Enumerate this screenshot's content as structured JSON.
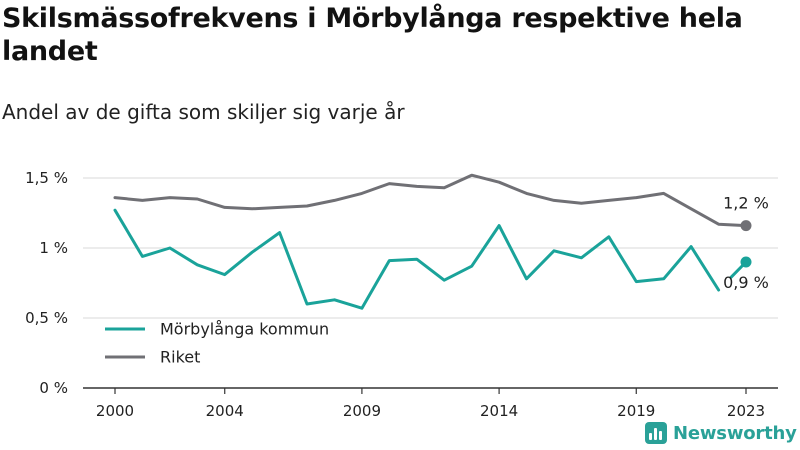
{
  "title": "Skilsmässofrekvens i Mörbylånga respektive hela landet",
  "subtitle": "Andel av de gifta som skiljer sig varje år",
  "brand": {
    "name": "Newsworthy",
    "icon": "newsworthy-logo-icon"
  },
  "colors": {
    "morbylanga": "#1aa39a",
    "riket": "#707075",
    "grid": "#d9d9d9",
    "axis": "#333333"
  },
  "chart_data": {
    "type": "line",
    "title": "Skilsmässofrekvens i Mörbylånga respektive hela landet",
    "subtitle": "Andel av de gifta som skiljer sig varje år",
    "xlabel": "",
    "ylabel": "",
    "x": [
      2000,
      2001,
      2002,
      2003,
      2004,
      2005,
      2006,
      2007,
      2008,
      2009,
      2010,
      2011,
      2012,
      2013,
      2014,
      2015,
      2016,
      2017,
      2018,
      2019,
      2020,
      2021,
      2022,
      2023
    ],
    "xticks": [
      2000,
      2004,
      2009,
      2014,
      2019,
      2023
    ],
    "xtick_labels": [
      "2000",
      "2004",
      "2009",
      "2014",
      "2019",
      "2023"
    ],
    "ylim": [
      0,
      1.5
    ],
    "yticks": [
      0,
      0.5,
      1,
      1.5
    ],
    "ytick_labels": [
      "0 %",
      "0,5 %",
      "1 %",
      "1,5 %"
    ],
    "grid": true,
    "legend_position": "bottom-left",
    "series": [
      {
        "name": "Mörbylånga kommun",
        "color": "#1aa39a",
        "values": [
          1.27,
          0.94,
          1.0,
          0.88,
          0.81,
          0.97,
          1.11,
          0.6,
          0.63,
          0.57,
          0.91,
          0.92,
          0.77,
          0.87,
          1.16,
          0.78,
          0.98,
          0.93,
          1.08,
          0.76,
          0.78,
          1.01,
          0.7,
          0.9
        ],
        "end_label": "0,9 %"
      },
      {
        "name": "Riket",
        "color": "#707075",
        "values": [
          1.36,
          1.34,
          1.36,
          1.35,
          1.29,
          1.28,
          1.29,
          1.3,
          1.34,
          1.39,
          1.46,
          1.44,
          1.43,
          1.52,
          1.47,
          1.39,
          1.34,
          1.32,
          1.34,
          1.36,
          1.39,
          1.28,
          1.17,
          1.16
        ],
        "end_label": "1,2 %"
      }
    ]
  }
}
